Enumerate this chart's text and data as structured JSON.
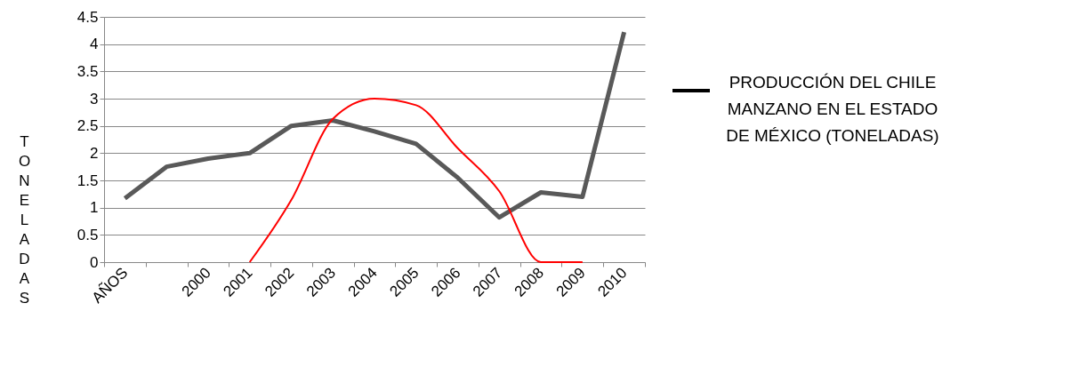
{
  "chart_data": {
    "type": "line",
    "ylabel": "TONELADAS",
    "categories": [
      "AÑOS",
      null,
      "2000",
      "2001",
      "2002",
      "2003",
      "2004",
      "2005",
      "2006",
      "2007",
      "2008",
      "2009",
      "2010"
    ],
    "series": [
      {
        "name": "PRODUCCIÓN DEL CHILE MANZANO EN EL ESTADO DE MÉXICO (TONELADAS)",
        "color": "#595959",
        "values": [
          1.17,
          1.75,
          1.9,
          2.0,
          2.5,
          2.6,
          2.4,
          2.17,
          1.55,
          0.82,
          1.28,
          1.2,
          4.22
        ]
      },
      {
        "color": "#ff0000",
        "values": [
          null,
          null,
          null,
          0,
          1.14,
          2.63,
          3.0,
          2.88,
          2.09,
          1.3,
          0,
          0,
          null
        ]
      }
    ],
    "ylim": [
      0,
      4.5
    ],
    "yticks": [
      0,
      0.5,
      1,
      1.5,
      2,
      2.5,
      3,
      3.5,
      4,
      4.5
    ],
    "grid": "y",
    "legend": "right",
    "marker": "none",
    "line_style": "solid"
  }
}
